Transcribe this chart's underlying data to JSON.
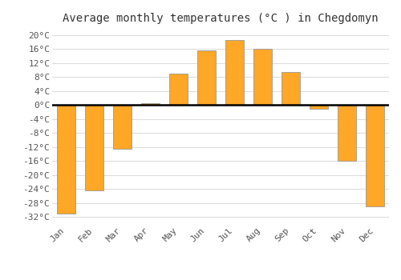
{
  "title": "Average monthly temperatures (°C ) in Chegdomyn",
  "months": [
    "Jan",
    "Feb",
    "Mar",
    "Apr",
    "May",
    "Jun",
    "Jul",
    "Aug",
    "Sep",
    "Oct",
    "Nov",
    "Dec"
  ],
  "values": [
    -31,
    -24.5,
    -12.5,
    0.5,
    9,
    15.5,
    18.5,
    16,
    9.5,
    -1,
    -16,
    -29
  ],
  "bar_color": "#FFA726",
  "bar_edge_color": "#999999",
  "ylim": [
    -34,
    22
  ],
  "yticks": [
    -32,
    -28,
    -24,
    -20,
    -16,
    -12,
    -8,
    -4,
    0,
    4,
    8,
    12,
    16,
    20
  ],
  "figure_bg_color": "#ffffff",
  "plot_bg_color": "#ffffff",
  "grid_color": "#dddddd",
  "title_fontsize": 10,
  "tick_fontsize": 8,
  "font_family": "monospace",
  "bar_width": 0.65
}
